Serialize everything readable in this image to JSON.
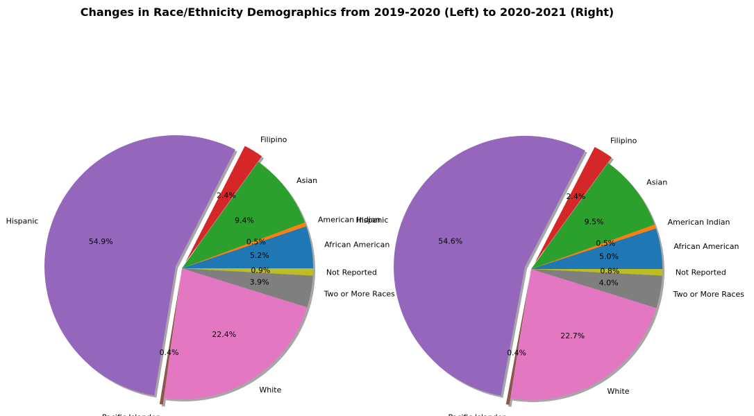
{
  "title": "Changes in Race/Ethnicity Demographics from 2019-2020 (Left) to 2020-2021 (Right)",
  "chart_data": [
    {
      "type": "pie",
      "categories": [
        "African American",
        "American Indian",
        "Asian",
        "Filipino",
        "Hispanic",
        "Pacific Islander",
        "White",
        "Two or More Races",
        "Not Reported"
      ],
      "values": [
        5.2,
        0.5,
        9.4,
        2.4,
        54.9,
        0.4,
        22.4,
        3.9,
        0.9
      ],
      "value_labels": [
        "5.2%",
        "0.5%",
        "9.4%",
        "2.4%",
        "54.9%",
        "0.4%",
        "22.4%",
        "3.9%",
        "0.9%"
      ],
      "colors": [
        "#1f77b4",
        "#ff7f0e",
        "#2ca02c",
        "#d62728",
        "#9467bd",
        "#8c564b",
        "#e377c2",
        "#7f7f7f",
        "#bcbd22"
      ],
      "exploded": [
        "Filipino",
        "Hispanic",
        "Pacific Islander"
      ],
      "shadow": true,
      "start_angle_deg": 0
    },
    {
      "type": "pie",
      "categories": [
        "African American",
        "American Indian",
        "Asian",
        "Filipino",
        "Hispanic",
        "Pacific Islander",
        "White",
        "Two or More Races",
        "Not Reported"
      ],
      "values": [
        5.0,
        0.5,
        9.5,
        2.4,
        54.6,
        0.4,
        22.7,
        4.0,
        0.8
      ],
      "value_labels": [
        "5.0%",
        "0.5%",
        "9.5%",
        "2.4%",
        "54.6%",
        "0.4%",
        "22.7%",
        "4.0%",
        "0.8%"
      ],
      "colors": [
        "#1f77b4",
        "#ff7f0e",
        "#2ca02c",
        "#d62728",
        "#9467bd",
        "#8c564b",
        "#e377c2",
        "#7f7f7f",
        "#bcbd22"
      ],
      "exploded": [
        "Filipino",
        "Hispanic",
        "Pacific Islander"
      ],
      "shadow": true,
      "start_angle_deg": 0
    }
  ]
}
